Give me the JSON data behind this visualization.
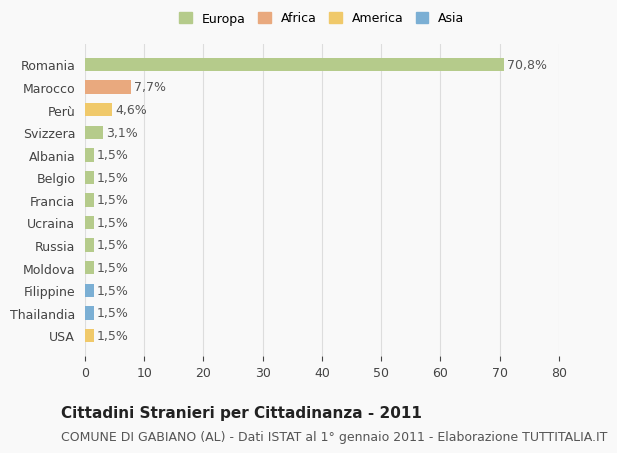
{
  "categories": [
    "Romania",
    "Marocco",
    "Perù",
    "Svizzera",
    "Albania",
    "Belgio",
    "Francia",
    "Ucraina",
    "Russia",
    "Moldova",
    "Filippine",
    "Thailandia",
    "USA"
  ],
  "values": [
    70.8,
    7.7,
    4.6,
    3.1,
    1.5,
    1.5,
    1.5,
    1.5,
    1.5,
    1.5,
    1.5,
    1.5,
    1.5
  ],
  "labels": [
    "70,8%",
    "7,7%",
    "4,6%",
    "3,1%",
    "1,5%",
    "1,5%",
    "1,5%",
    "1,5%",
    "1,5%",
    "1,5%",
    "1,5%",
    "1,5%",
    "1,5%"
  ],
  "colors": [
    "#b5cb8b",
    "#e9a97e",
    "#f0c96a",
    "#b5cb8b",
    "#b5cb8b",
    "#b5cb8b",
    "#b5cb8b",
    "#b5cb8b",
    "#b5cb8b",
    "#b5cb8b",
    "#7bafd4",
    "#7bafd4",
    "#f0c96a"
  ],
  "legend_labels": [
    "Europa",
    "Africa",
    "America",
    "Asia"
  ],
  "legend_colors": [
    "#b5cb8b",
    "#e9a97e",
    "#f0c96a",
    "#7bafd4"
  ],
  "xlim": [
    0,
    80
  ],
  "xticks": [
    0,
    10,
    20,
    30,
    40,
    50,
    60,
    70,
    80
  ],
  "title": "Cittadini Stranieri per Cittadinanza - 2011",
  "subtitle": "COMUNE DI GABIANO (AL) - Dati ISTAT al 1° gennaio 2011 - Elaborazione TUTTITALIA.IT",
  "background_color": "#f9f9f9",
  "bar_height": 0.6,
  "title_fontsize": 11,
  "subtitle_fontsize": 9,
  "label_fontsize": 9,
  "tick_fontsize": 9,
  "grid_color": "#dddddd"
}
